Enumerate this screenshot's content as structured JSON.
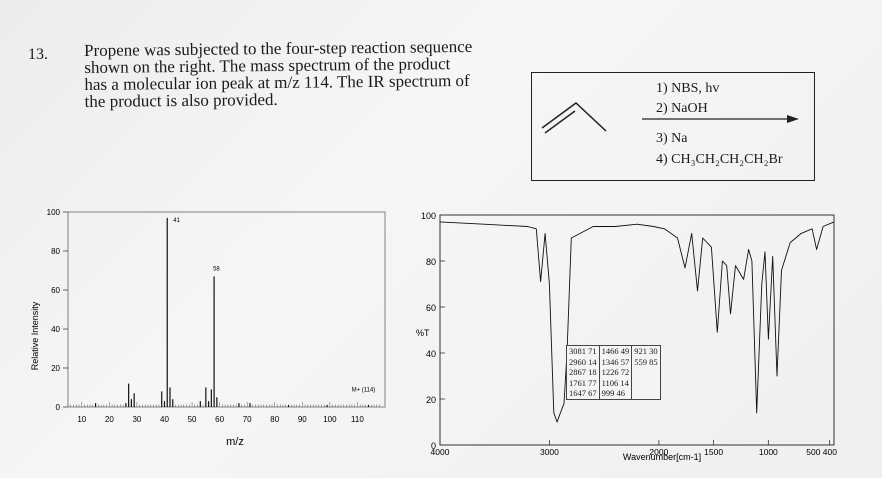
{
  "question": {
    "number": "13.",
    "lines": [
      "Propene was subjected to the four-step reaction sequence",
      "shown on the right.  The mass spectrum of the product",
      "has a molecular ion peak at m/z 114.  The IR spectrum of",
      "the product is also provided."
    ]
  },
  "reaction": {
    "reagents": [
      "1) NBS, hv",
      "2) NaOH",
      "3) Na",
      "4) CH₃CH₂CH₂CH₂Br"
    ]
  },
  "mass_spectrum": {
    "ylabel": "Relative Intensity",
    "xlabel": "m/z",
    "xticks": [
      "10",
      "20",
      "30",
      "40",
      "50",
      "60",
      "70",
      "80",
      "90",
      "100",
      "110"
    ],
    "yticks": [
      "0",
      "20",
      "40",
      "60",
      "80",
      "100"
    ],
    "peak_labels": [
      "41",
      "58",
      "M+ (114)"
    ]
  },
  "ir_spectrum": {
    "ylabel": "%T",
    "xlabel": "Wavenumber[cm-1]",
    "xticks": [
      "4000",
      "3000",
      "2000",
      "1500",
      "1000",
      "500 400"
    ],
    "yticks": [
      "0",
      "20",
      "40",
      "60",
      "80",
      "100"
    ],
    "table": [
      [
        "3081 71",
        "1466 49",
        "921 30"
      ],
      [
        "2960 14",
        "1346 57",
        "559 85"
      ],
      [
        "2867 18",
        "1226 72",
        ""
      ],
      [
        "1761 77",
        "1106 14",
        ""
      ],
      [
        "1647 67",
        "999 46",
        ""
      ]
    ]
  },
  "chart_data": [
    {
      "type": "bar",
      "xlabel": "m/z",
      "ylabel": "Relative Intensity",
      "xlim": [
        5,
        120
      ],
      "ylim": [
        0,
        100
      ],
      "x": [
        15,
        26,
        27,
        28,
        29,
        39,
        40,
        41,
        42,
        43,
        53,
        55,
        56,
        57,
        58,
        59,
        67,
        71,
        85,
        99,
        114
      ],
      "values": [
        2,
        2,
        12,
        4,
        7,
        8,
        3,
        97,
        10,
        4,
        3,
        10,
        3,
        9,
        67,
        5,
        2,
        2,
        1,
        1,
        1
      ],
      "annotations": [
        "41",
        "58",
        "M+ (114)"
      ]
    },
    {
      "type": "line",
      "xlabel": "Wavenumber[cm-1]",
      "ylabel": "%T",
      "xlim": [
        4000,
        400
      ],
      "ylim": [
        0,
        100
      ],
      "x": [
        4000,
        3600,
        3200,
        3120,
        3081,
        3040,
        3000,
        2960,
        2930,
        2900,
        2867,
        2840,
        2800,
        2600,
        2400,
        2200,
        2050,
        1950,
        1830,
        1761,
        1700,
        1647,
        1600,
        1520,
        1466,
        1420,
        1380,
        1346,
        1300,
        1226,
        1180,
        1150,
        1106,
        1060,
        1030,
        999,
        960,
        921,
        880,
        800,
        700,
        600,
        559,
        500,
        400
      ],
      "y": [
        97,
        96,
        95,
        94,
        71,
        92,
        70,
        14,
        10,
        14,
        18,
        40,
        90,
        95,
        95,
        96,
        95,
        94,
        90,
        77,
        92,
        67,
        90,
        86,
        49,
        80,
        78,
        57,
        78,
        72,
        85,
        80,
        14,
        70,
        84,
        46,
        82,
        30,
        76,
        88,
        92,
        94,
        85,
        95,
        97
      ]
    }
  ]
}
